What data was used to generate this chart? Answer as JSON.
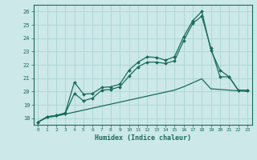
{
  "xlabel": "Humidex (Indice chaleur)",
  "bg_color": "#cce8e8",
  "grid_color": "#aad4d4",
  "line_color": "#1a6b5a",
  "xlim": [
    -0.5,
    23.5
  ],
  "ylim": [
    17.5,
    26.5
  ],
  "yticks": [
    18,
    19,
    20,
    21,
    22,
    23,
    24,
    25,
    26
  ],
  "xticks": [
    0,
    1,
    2,
    3,
    4,
    5,
    6,
    7,
    8,
    9,
    10,
    11,
    12,
    13,
    14,
    15,
    16,
    17,
    18,
    19,
    20,
    21,
    22,
    23
  ],
  "line1_x": [
    0,
    1,
    2,
    3,
    4,
    5,
    6,
    7,
    8,
    9,
    10,
    11,
    12,
    13,
    14,
    15,
    16,
    17,
    18,
    19,
    20,
    21,
    22,
    23
  ],
  "line1_y": [
    17.7,
    18.1,
    18.2,
    18.4,
    20.7,
    19.8,
    19.85,
    20.3,
    20.35,
    20.55,
    21.6,
    22.2,
    22.6,
    22.55,
    22.35,
    22.6,
    24.1,
    25.3,
    26.0,
    23.1,
    21.6,
    21.1,
    20.1,
    20.1
  ],
  "line2_x": [
    0,
    1,
    2,
    3,
    4,
    5,
    6,
    7,
    8,
    9,
    10,
    11,
    12,
    13,
    14,
    15,
    16,
    17,
    18,
    19,
    20,
    21,
    22,
    23
  ],
  "line2_y": [
    17.7,
    18.1,
    18.2,
    18.35,
    19.85,
    19.3,
    19.5,
    20.1,
    20.15,
    20.35,
    21.15,
    21.85,
    22.2,
    22.2,
    22.1,
    22.3,
    23.8,
    25.1,
    25.65,
    23.25,
    21.1,
    21.1,
    20.1,
    20.1
  ],
  "line3_x": [
    0,
    1,
    2,
    3,
    4,
    5,
    6,
    7,
    8,
    9,
    10,
    11,
    12,
    13,
    14,
    15,
    16,
    17,
    18,
    19,
    20,
    21,
    22,
    23
  ],
  "line3_y": [
    17.7,
    18.05,
    18.15,
    18.3,
    18.45,
    18.6,
    18.75,
    18.9,
    19.05,
    19.2,
    19.35,
    19.5,
    19.65,
    19.8,
    19.95,
    20.1,
    20.35,
    20.65,
    20.95,
    20.2,
    20.15,
    20.1,
    20.05,
    20.0
  ]
}
